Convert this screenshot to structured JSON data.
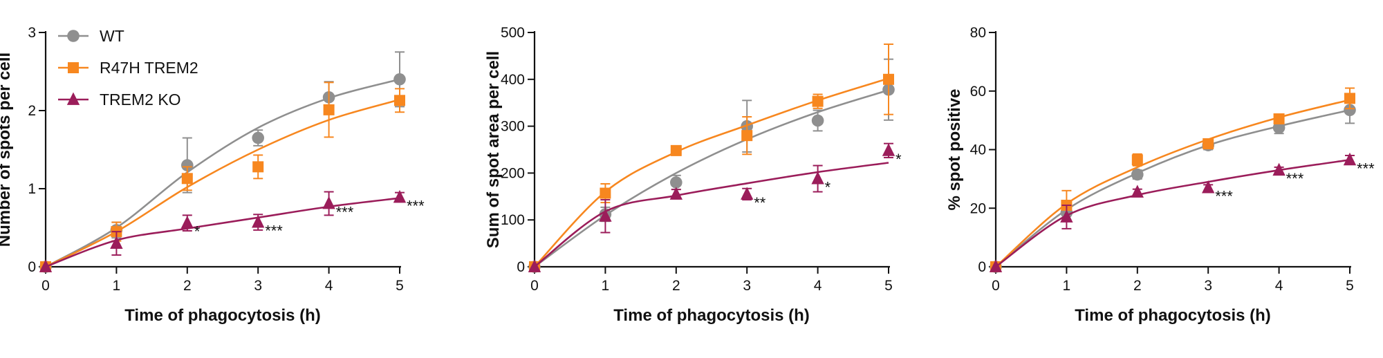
{
  "legend": {
    "entries": [
      {
        "label": "WT",
        "color": "#8f8f8f",
        "marker": "circle"
      },
      {
        "label": "R47H TREM2",
        "color": "#f7871f",
        "marker": "square"
      },
      {
        "label": "TREM2 KO",
        "color": "#9b1d5a",
        "marker": "triangle"
      }
    ]
  },
  "chart_data": [
    {
      "type": "scatter",
      "title": "",
      "xlabel": "Time of phagocytosis (h)",
      "ylabel": "Number of spots per cell",
      "xlim": [
        0,
        5
      ],
      "ylim": [
        0,
        3
      ],
      "xticks": [
        "0",
        "1",
        "2",
        "3",
        "4",
        "5"
      ],
      "yticks": [
        "0",
        "1",
        "2",
        "3"
      ],
      "x": [
        0,
        1,
        2,
        3,
        4,
        5
      ],
      "series": [
        {
          "name": "WT",
          "color": "#8f8f8f",
          "marker": "circle",
          "values": [
            0.0,
            0.47,
            1.3,
            1.65,
            2.17,
            2.4
          ],
          "err": [
            0.0,
            0.1,
            0.35,
            0.1,
            0.2,
            0.35
          ],
          "fit": [
            0,
            0.5,
            1.21,
            1.78,
            2.16,
            2.4
          ]
        },
        {
          "name": "R47H TREM2",
          "color": "#f7871f",
          "marker": "square",
          "values": [
            0.0,
            0.45,
            1.13,
            1.28,
            2.01,
            2.13
          ],
          "err": [
            0.0,
            0.12,
            0.15,
            0.15,
            0.35,
            0.15
          ],
          "fit": [
            0,
            0.45,
            1.02,
            1.5,
            1.88,
            2.14
          ]
        },
        {
          "name": "TREM2 KO",
          "color": "#9b1d5a",
          "marker": "triangle",
          "values": [
            0.0,
            0.3,
            0.56,
            0.57,
            0.81,
            0.89
          ],
          "err": [
            0.0,
            0.15,
            0.1,
            0.1,
            0.15,
            0.06
          ],
          "fit": [
            0,
            0.34,
            0.49,
            0.63,
            0.77,
            0.88
          ]
        }
      ],
      "annotations": [
        {
          "x": 2,
          "y": 0.56,
          "text": "*"
        },
        {
          "x": 3,
          "y": 0.57,
          "text": "***"
        },
        {
          "x": 4,
          "y": 0.81,
          "text": "***"
        },
        {
          "x": 5,
          "y": 0.89,
          "text": "***"
        }
      ],
      "legend": "top-left",
      "grid": false
    },
    {
      "type": "scatter",
      "title": "",
      "xlabel": "Time of phagocytosis (h)",
      "ylabel": "Sum of spot area per cell",
      "xlim": [
        0,
        5
      ],
      "ylim": [
        0,
        500
      ],
      "xticks": [
        "0",
        "1",
        "2",
        "3",
        "4",
        "5"
      ],
      "yticks": [
        "0",
        "100",
        "200",
        "300",
        "400",
        "500"
      ],
      "x": [
        0,
        1,
        2,
        3,
        4,
        5
      ],
      "series": [
        {
          "name": "WT",
          "color": "#8f8f8f",
          "marker": "circle",
          "values": [
            0,
            112,
            180,
            300,
            312,
            378
          ],
          "err": [
            0,
            15,
            15,
            55,
            22,
            65
          ],
          "fit": [
            0,
            110,
            200,
            272,
            330,
            377
          ]
        },
        {
          "name": "R47H TREM2",
          "color": "#f7871f",
          "marker": "square",
          "values": [
            0,
            157,
            248,
            280,
            353,
            400
          ],
          "err": [
            0,
            20,
            10,
            40,
            15,
            75
          ],
          "fit": [
            0,
            160,
            245,
            302,
            355,
            402
          ]
        },
        {
          "name": "TREM2 KO",
          "color": "#9b1d5a",
          "marker": "triangle",
          "values": [
            0,
            108,
            155,
            155,
            188,
            248
          ],
          "err": [
            0,
            35,
            10,
            12,
            28,
            15
          ],
          "fit": [
            0,
            118,
            152,
            178,
            202,
            222
          ]
        }
      ],
      "annotations": [
        {
          "x": 3,
          "y": 155,
          "text": "**"
        },
        {
          "x": 4,
          "y": 188,
          "text": "*"
        },
        {
          "x": 5,
          "y": 248,
          "text": "*"
        }
      ],
      "grid": false
    },
    {
      "type": "scatter",
      "title": "",
      "xlabel": "Time of phagocytosis (h)",
      "ylabel": "% spot positive",
      "xlim": [
        0,
        5
      ],
      "ylim": [
        0,
        80
      ],
      "xticks": [
        "0",
        "1",
        "2",
        "3",
        "4",
        "5"
      ],
      "yticks": [
        "0",
        "20",
        "40",
        "60",
        "80"
      ],
      "x": [
        0,
        1,
        2,
        3,
        4,
        5
      ],
      "series": [
        {
          "name": "WT",
          "color": "#8f8f8f",
          "marker": "circle",
          "values": [
            0,
            18.5,
            31.5,
            41.5,
            47.5,
            53.5
          ],
          "err": [
            0,
            3,
            1.5,
            1.5,
            2,
            4.5
          ],
          "fit": [
            0,
            19.5,
            32,
            41.5,
            48,
            53.5
          ]
        },
        {
          "name": "R47H TREM2",
          "color": "#f7871f",
          "marker": "square",
          "values": [
            0,
            21,
            36.5,
            42,
            50.5,
            57.5
          ],
          "err": [
            0,
            5,
            2,
            1.5,
            1.5,
            3.5
          ],
          "fit": [
            0,
            21.5,
            34,
            43.5,
            51,
            57
          ]
        },
        {
          "name": "TREM2 KO",
          "color": "#9b1d5a",
          "marker": "triangle",
          "values": [
            0,
            17,
            25.5,
            27,
            33,
            36.5
          ],
          "err": [
            0,
            4,
            1,
            1,
            1,
            1.5
          ],
          "fit": [
            0,
            17.5,
            24.5,
            29,
            33,
            36.5
          ]
        }
      ],
      "annotations": [
        {
          "x": 3,
          "y": 27,
          "text": "***"
        },
        {
          "x": 4,
          "y": 33,
          "text": "***"
        },
        {
          "x": 5,
          "y": 36.5,
          "text": "***"
        }
      ],
      "grid": false
    }
  ]
}
